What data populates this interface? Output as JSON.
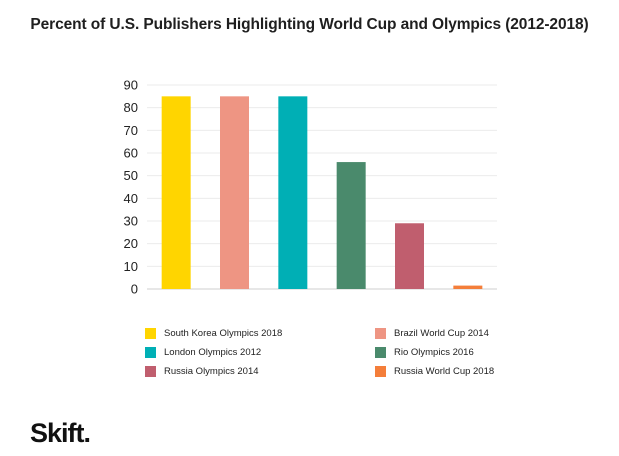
{
  "chart_data": {
    "type": "bar",
    "title": "Percent of U.S. Publishers Highlighting World Cup and Olympics (2012-2018)",
    "xlabel": "",
    "ylabel": "",
    "ylim": [
      0,
      90
    ],
    "yticks": [
      "90",
      "80",
      "70",
      "60",
      "50",
      "40",
      "30",
      "20",
      "10",
      "0"
    ],
    "grid": true,
    "legend_position": "bottom",
    "categories": [
      "South Korea Olympics 2018",
      "Brazil World Cup 2014",
      "London Olympics 2012",
      "Rio Olympics 2016",
      "Russia Olympics 2014",
      "Russia World Cup 2018"
    ],
    "values": [
      85,
      85,
      85,
      56,
      29,
      1.5
    ],
    "colors": [
      "#FFD500",
      "#EE9583",
      "#00AFB5",
      "#4A8A6C",
      "#C05E6E",
      "#F47E3A"
    ]
  },
  "logo": {
    "text": "Skift."
  }
}
